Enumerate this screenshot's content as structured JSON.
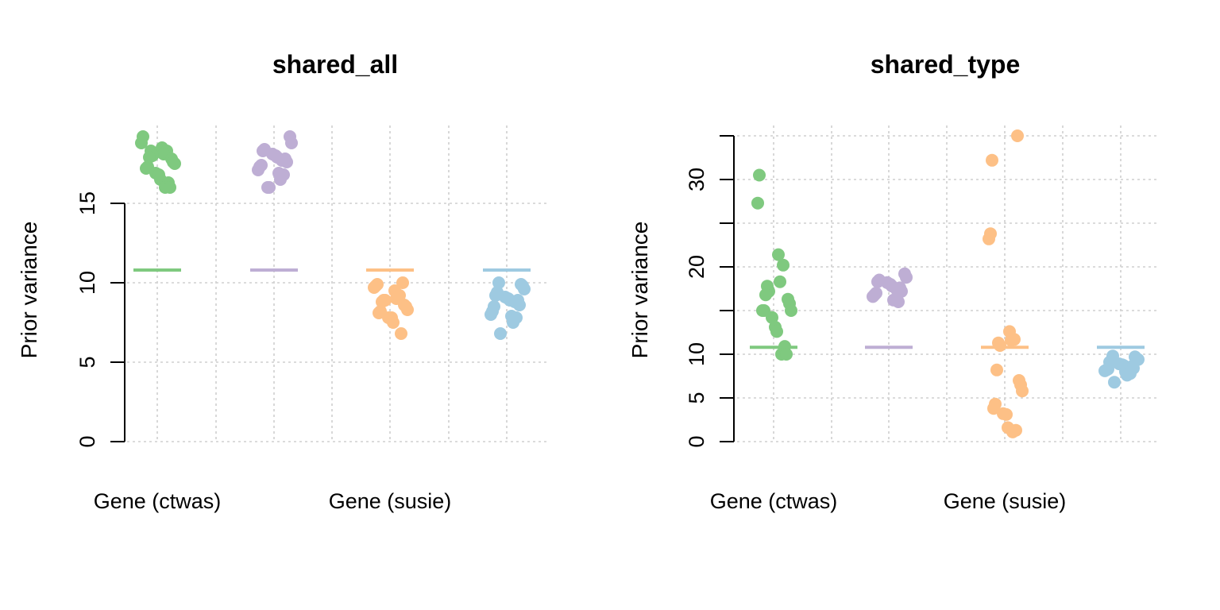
{
  "chart_data": [
    {
      "type": "scatter",
      "title": "shared_all",
      "ylabel": "Prior variance",
      "xlabel": "",
      "ylim": [
        0,
        20
      ],
      "yticks": [
        0,
        5,
        10,
        15
      ],
      "grid": true,
      "x_tick_labels": [
        {
          "label": "Gene (ctwas)",
          "group": 1
        },
        {
          "label": "Gene (susie)",
          "group": 3
        }
      ],
      "series": [
        {
          "color": "#7fc97f",
          "mean": 10.8,
          "values": [
            19.2,
            18.8,
            18.5,
            18.3,
            18.1,
            18.3,
            18.0,
            17.9,
            17.8,
            17.6,
            17.5,
            17.3,
            17.2,
            16.9,
            16.8,
            16.5,
            16.3,
            16.0,
            16.0
          ]
        },
        {
          "color": "#beaed4",
          "mean": 10.8,
          "values": [
            19.2,
            18.8,
            18.4,
            18.3,
            18.1,
            18.0,
            17.9,
            17.8,
            17.7,
            17.6,
            17.4,
            17.3,
            17.1,
            16.9,
            16.8,
            16.5,
            16.0,
            16.0
          ]
        },
        {
          "color": "#fdc086",
          "mean": 10.8,
          "values": [
            10.0,
            9.9,
            9.8,
            9.7,
            9.5,
            9.2,
            9.0,
            8.9,
            8.9,
            8.8,
            8.6,
            8.5,
            8.3,
            8.2,
            8.1,
            7.8,
            7.8,
            7.5,
            6.8
          ]
        },
        {
          "color": "#9ecae1",
          "mean": 10.8,
          "values": [
            10.0,
            9.9,
            9.8,
            9.6,
            9.4,
            9.2,
            9.1,
            9.0,
            8.9,
            8.9,
            8.8,
            8.6,
            8.5,
            8.2,
            8.0,
            7.9,
            7.8,
            7.5,
            6.8
          ]
        }
      ]
    },
    {
      "type": "scatter",
      "title": "shared_type",
      "ylabel": "Prior variance",
      "xlabel": "",
      "ylim": [
        0,
        35
      ],
      "yticks": [
        0,
        5,
        10,
        20,
        30
      ],
      "ygrid": [
        0,
        5,
        10,
        15,
        20,
        25,
        30,
        35
      ],
      "grid": true,
      "x_tick_labels": [
        {
          "label": "Gene (ctwas)",
          "group": 1
        },
        {
          "label": "Gene (susie)",
          "group": 3
        }
      ],
      "series": [
        {
          "color": "#7fc97f",
          "mean": 10.8,
          "values": [
            30.5,
            27.3,
            21.4,
            20.2,
            18.3,
            17.8,
            17.2,
            16.8,
            16.3,
            15.8,
            15.0,
            15.0,
            15.0,
            14.2,
            13.1,
            12.6,
            10.9,
            10.0,
            10.0
          ]
        },
        {
          "color": "#beaed4",
          "mean": 10.8,
          "values": [
            19.2,
            18.8,
            18.5,
            18.3,
            18.2,
            18.0,
            17.8,
            17.6,
            17.4,
            17.2,
            17.0,
            16.8,
            16.6,
            16.2,
            16.0
          ]
        },
        {
          "color": "#fdc086",
          "mean": 10.8,
          "values": [
            35.0,
            32.2,
            23.8,
            23.2,
            12.6,
            11.7,
            11.6,
            11.3,
            11.0,
            8.2,
            7.0,
            6.5,
            5.8,
            4.3,
            3.8,
            3.2,
            3.1,
            1.6,
            1.3,
            1.1
          ]
        },
        {
          "color": "#9ecae1",
          "mean": 10.8,
          "values": [
            9.8,
            9.7,
            9.5,
            9.4,
            9.2,
            9.1,
            8.9,
            8.8,
            8.7,
            8.6,
            8.5,
            8.4,
            8.3,
            8.2,
            8.1,
            8.0,
            7.8,
            7.6,
            6.8
          ]
        }
      ]
    }
  ]
}
